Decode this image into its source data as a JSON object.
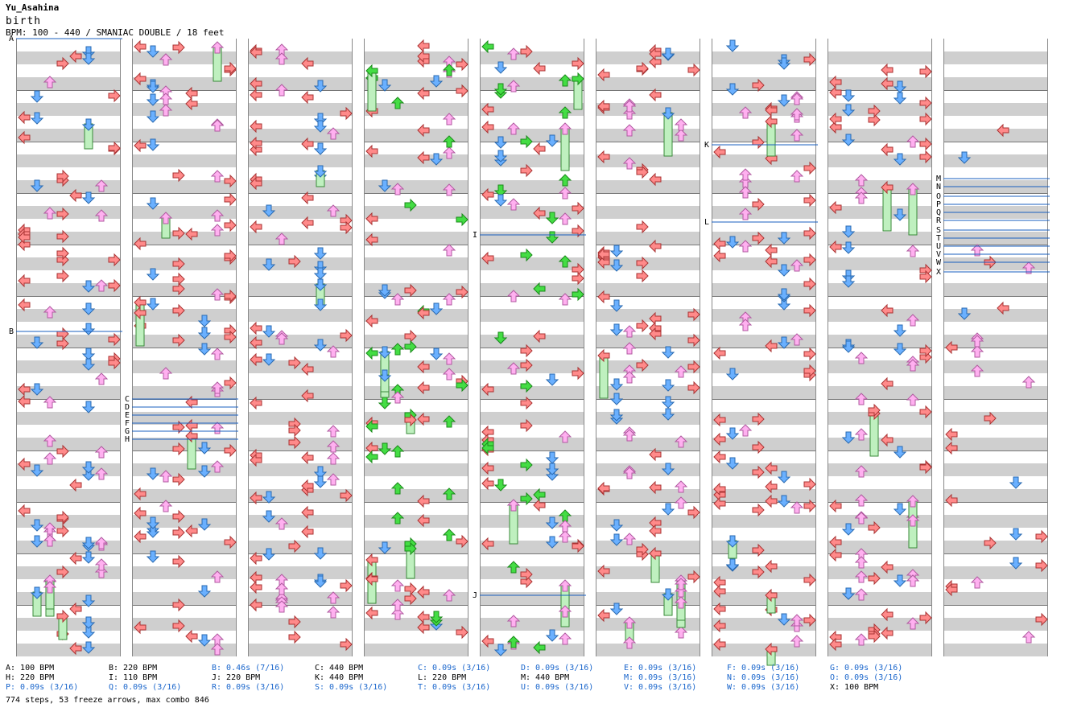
{
  "header": {
    "author": "Yu_Asahina",
    "title": "birth",
    "info": "BPM: 100 - 440 / SMANIAC DOUBLE / 18 feet"
  },
  "colors": {
    "left": "#ff8a8a",
    "down": "#6ab0ff",
    "up": "#ffb0f0",
    "right": "#ff8a8a",
    "freeze": "#bff0bf",
    "shock_green": "#44dd44",
    "marker_line": "#1a5fbf",
    "alt_text": "#1a66cc"
  },
  "markers": [
    "A",
    "B",
    "C",
    "D",
    "E",
    "F",
    "G",
    "H",
    "I",
    "J",
    "K",
    "L",
    "M",
    "N",
    "O",
    "P",
    "Q",
    "R",
    "S",
    "T",
    "U",
    "V",
    "W",
    "X"
  ],
  "legend": [
    "A: 100 BPM",
    "B: 220 BPM",
    "B: 0.46s (7/16)",
    "C: 440 BPM",
    "C: 0.09s (3/16)",
    "D: 0.09s (3/16)",
    "E: 0.09s (3/16)",
    "F: 0.09s (3/16)",
    "G: 0.09s (3/16)",
    "H: 220 BPM",
    "I: 110 BPM",
    "J: 220 BPM",
    "K: 440 BPM",
    "L: 220 BPM",
    "M: 440 BPM",
    "M: 0.09s (3/16)",
    "N: 0.09s (3/16)",
    "O: 0.09s (3/16)",
    "P: 0.09s (3/16)",
    "Q: 0.09s (3/16)",
    "R: 0.09s (3/16)",
    "S: 0.09s (3/16)",
    "T: 0.09s (3/16)",
    "U: 0.09s (3/16)",
    "V: 0.09s (3/16)",
    "W: 0.09s (3/16)",
    "X: 100 BPM"
  ],
  "footer": "774 steps, 53 freeze arrows, max combo 846"
}
